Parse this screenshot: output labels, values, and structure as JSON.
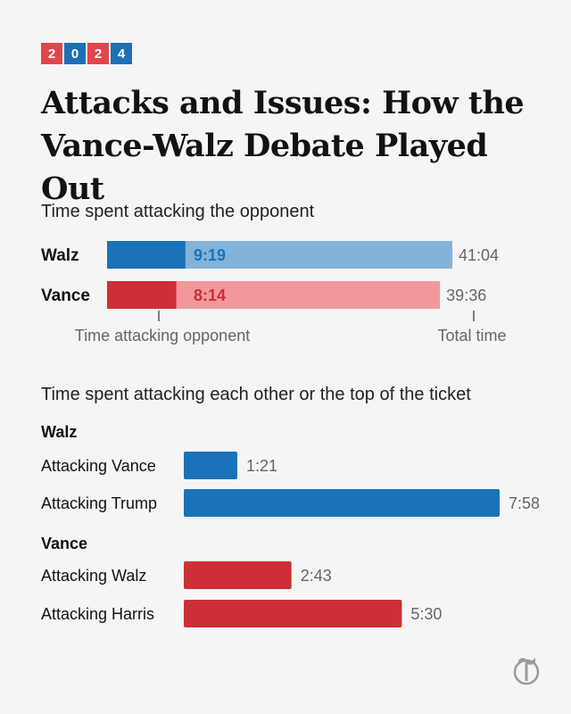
{
  "badge": {
    "digits": [
      "2",
      "0",
      "2",
      "4"
    ],
    "colors": [
      "#e0474c",
      "#1f6fb5",
      "#e0474c",
      "#1f6fb5"
    ]
  },
  "headline": "Attacks and Issues: How the Vance-Walz Debate Played Out",
  "colors": {
    "walz_dark": "#1a73b8",
    "walz_light": "#84b3d9",
    "vance_dark": "#cc2f36",
    "vance_light": "#f2989a",
    "label_gray": "#666666"
  },
  "logo_icon": "nyt-t-logo-icon",
  "chart_data": [
    {
      "type": "bar",
      "title": "Time spent attacking the opponent",
      "categories": [
        "Walz",
        "Vance"
      ],
      "series": [
        {
          "name": "Time attacking opponent",
          "values": [
            "9:19",
            "8:14"
          ],
          "seconds": [
            559,
            494
          ]
        },
        {
          "name": "Total time",
          "values": [
            "41:04",
            "39:36"
          ],
          "seconds": [
            2464,
            2376
          ]
        }
      ],
      "annotations": [
        "Time attacking opponent",
        "Total time"
      ]
    },
    {
      "type": "bar",
      "title": "Time spent attacking each other or the top of the ticket",
      "groups": [
        {
          "name": "Walz",
          "categories": [
            "Attacking Vance",
            "Attacking Trump"
          ],
          "values": [
            "1:21",
            "7:58"
          ],
          "seconds": [
            81,
            478
          ]
        },
        {
          "name": "Vance",
          "categories": [
            "Attacking Walz",
            "Attacking Harris"
          ],
          "values": [
            "2:43",
            "5:30"
          ],
          "seconds": [
            163,
            330
          ]
        }
      ]
    }
  ]
}
